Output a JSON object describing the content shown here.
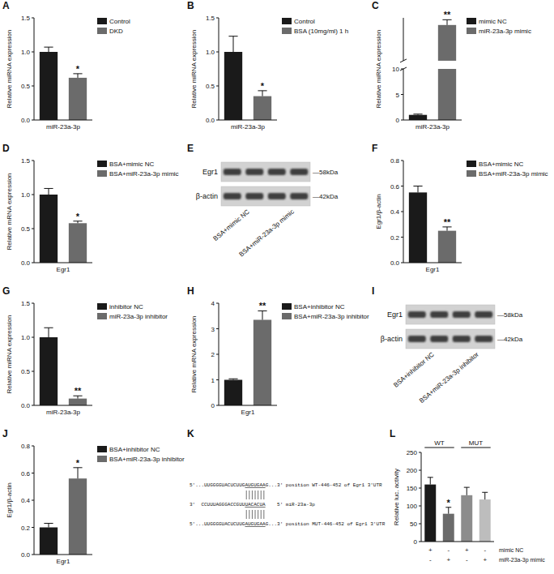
{
  "chart_data": [
    {
      "panel": "A",
      "type": "bar",
      "ylabel": "Relative miRNA expression",
      "categories": [
        "miR-23a-3p"
      ],
      "series": [
        {
          "name": "Control",
          "color": "#1a1a1a",
          "values": [
            1.0
          ],
          "errors": [
            0.07
          ]
        },
        {
          "name": "DKD",
          "color": "#6b6b6b",
          "values": [
            0.62
          ],
          "errors": [
            0.06
          ],
          "annotation": "*"
        }
      ],
      "ylim": [
        0,
        1.5
      ],
      "yticks": [
        {
          "value": 0,
          "label": "0.0"
        },
        {
          "value": 0.5,
          "label": "0.5"
        },
        {
          "value": 1,
          "label": "1.0"
        },
        {
          "value": 1.5,
          "label": "1.5"
        }
      ],
      "legend": "upper right"
    },
    {
      "panel": "B",
      "type": "bar",
      "ylabel": "Relative miRNA expression",
      "categories": [
        "miR-23a-3p"
      ],
      "series": [
        {
          "name": "Control",
          "color": "#1a1a1a",
          "values": [
            1.0
          ],
          "errors": [
            0.23
          ]
        },
        {
          "name": "BSA (10mg/ml) 1 h",
          "color": "#6b6b6b",
          "values": [
            0.35
          ],
          "errors": [
            0.08
          ],
          "annotation": "*"
        }
      ],
      "ylim": [
        0,
        1.5
      ],
      "yticks": [
        {
          "value": 0,
          "label": "0.0"
        },
        {
          "value": 0.5,
          "label": "0.5"
        },
        {
          "value": 1,
          "label": "1.0"
        },
        {
          "value": 1.5,
          "label": "1.5"
        }
      ],
      "legend": "upper right"
    },
    {
      "panel": "C",
      "type": "bar",
      "ylabel": "Relative miRNA expression",
      "categories": [
        "miR-23a-3p"
      ],
      "series": [
        {
          "name": "mimic NC",
          "color": "#1a1a1a",
          "values": [
            1.0
          ],
          "errors": [
            0.15
          ]
        },
        {
          "name": "miR-23a-3p mimic",
          "color": "#6b6b6b",
          "values": [
            850
          ],
          "errors": [
            110
          ],
          "annotation": "**"
        }
      ],
      "ylim": [
        0,
        1000
      ],
      "y_break": [
        10,
        100
      ],
      "yticks": [
        0,
        5,
        10
      ],
      "legend": "upper right"
    },
    {
      "panel": "D",
      "type": "bar",
      "ylabel": "Relative mRNA expression",
      "categories": [
        "Egr1"
      ],
      "series": [
        {
          "name": "BSA+mimic NC",
          "color": "#1a1a1a",
          "values": [
            1.0
          ],
          "errors": [
            0.09
          ]
        },
        {
          "name": "BSA+miR-23a-3p mimic",
          "color": "#6b6b6b",
          "values": [
            0.58
          ],
          "errors": [
            0.03
          ],
          "annotation": "*"
        }
      ],
      "ylim": [
        0,
        1.5
      ],
      "yticks": [
        {
          "value": 0,
          "label": "0.0"
        },
        {
          "value": 0.5,
          "label": "0.5"
        },
        {
          "value": 1,
          "label": "1.0"
        },
        {
          "value": 1.5,
          "label": "1.5"
        }
      ],
      "legend": "upper right"
    },
    {
      "panel": "F",
      "type": "bar",
      "ylabel": "Egr1/β-actin",
      "categories": [
        "Egr1"
      ],
      "series": [
        {
          "name": "BSA+mimic NC",
          "color": "#1a1a1a",
          "values": [
            0.55
          ],
          "errors": [
            0.05
          ]
        },
        {
          "name": "BSA+miR-23a-3p mimic",
          "color": "#6b6b6b",
          "values": [
            0.25
          ],
          "errors": [
            0.03
          ],
          "annotation": "**"
        }
      ],
      "ylim": [
        0,
        0.8
      ],
      "yticks": [
        {
          "value": 0,
          "label": "0.0"
        },
        {
          "value": 0.2,
          "label": "0.2"
        },
        {
          "value": 0.4,
          "label": "0.4"
        },
        {
          "value": 0.6,
          "label": "0.6"
        },
        {
          "value": 0.8,
          "label": "0.8"
        }
      ],
      "legend": "upper right"
    },
    {
      "panel": "G",
      "type": "bar",
      "ylabel": "Relative miRNA expression",
      "categories": [
        "miR-23a-3p"
      ],
      "series": [
        {
          "name": "inhibitor NC",
          "color": "#1a1a1a",
          "values": [
            1.0
          ],
          "errors": [
            0.14
          ]
        },
        {
          "name": "miR-23a-3p inhibitor",
          "color": "#6b6b6b",
          "values": [
            0.1
          ],
          "errors": [
            0.04
          ],
          "annotation": "**"
        }
      ],
      "ylim": [
        0,
        1.5
      ],
      "yticks": [
        {
          "value": 0,
          "label": "0.0"
        },
        {
          "value": 0.5,
          "label": "0.5"
        },
        {
          "value": 1,
          "label": "1.0"
        },
        {
          "value": 1.5,
          "label": "1.5"
        }
      ],
      "legend": "upper right"
    },
    {
      "panel": "H",
      "type": "bar",
      "ylabel": "Relative mRNA expression",
      "categories": [
        "Egr1"
      ],
      "series": [
        {
          "name": "BSA+inhibitor NC",
          "color": "#1a1a1a",
          "values": [
            1.0
          ],
          "errors": [
            0.04
          ]
        },
        {
          "name": "BSA+miR-23a-3p inhibitor",
          "color": "#6b6b6b",
          "values": [
            3.35
          ],
          "errors": [
            0.35
          ],
          "annotation": "**"
        }
      ],
      "ylim": [
        0,
        4
      ],
      "yticks": [
        0,
        1,
        2,
        3,
        4
      ],
      "legend": "upper right"
    },
    {
      "panel": "J",
      "type": "bar",
      "ylabel": "Egr1/β-actin",
      "categories": [
        "Egr1"
      ],
      "series": [
        {
          "name": "BSA+inhibitor NC",
          "color": "#1a1a1a",
          "values": [
            0.2
          ],
          "errors": [
            0.03
          ]
        },
        {
          "name": "BSA+miR-23a-3p inhibitor",
          "color": "#6b6b6b",
          "values": [
            0.56
          ],
          "errors": [
            0.08
          ],
          "annotation": "*"
        }
      ],
      "ylim": [
        0,
        0.8
      ],
      "yticks": [
        {
          "value": 0,
          "label": "0.0"
        },
        {
          "value": 0.2,
          "label": "0.2"
        },
        {
          "value": 0.4,
          "label": "0.4"
        },
        {
          "value": 0.6,
          "label": "0.6"
        },
        {
          "value": 0.8,
          "label": "0.8"
        }
      ],
      "legend": "upper right"
    },
    {
      "panel": "L",
      "type": "bar",
      "ylabel": "Relative luc. activity",
      "categories": [
        null,
        null,
        null,
        null
      ],
      "values": [
        160,
        78,
        130,
        118
      ],
      "errors": [
        20,
        18,
        22,
        20
      ],
      "colors": [
        "#1a1a1a",
        "#6b6b6b",
        "#8c8c8c",
        "#bdbdbd"
      ],
      "annotations": [
        null,
        "*",
        null,
        null
      ],
      "groups": [
        {
          "label": "WT",
          "from": 0,
          "to": 1
        },
        {
          "label": "MUT",
          "from": 2,
          "to": 3
        }
      ],
      "conditions": [
        {
          "label": "mimic NC",
          "values": [
            "+",
            "-",
            "+",
            "-"
          ]
        },
        {
          "label": "miR-23a-3p mimic",
          "values": [
            "-",
            "+",
            "-",
            "+"
          ]
        }
      ],
      "ylim": [
        0,
        250
      ],
      "yticks": [
        0,
        50,
        100,
        150,
        200,
        250
      ]
    }
  ],
  "blots": [
    {
      "panel": "E",
      "rows": [
        {
          "label": "Egr1",
          "size": "—58kDa"
        },
        {
          "label": "β-actin",
          "size": "—42kDa"
        }
      ],
      "lanes": [
        "BSA+mimic NC",
        "BSA+miR-23a-3p mimic"
      ]
    },
    {
      "panel": "I",
      "rows": [
        {
          "label": "Egr1",
          "size": "—58kDa"
        },
        {
          "label": "β-actin",
          "size": "—42kDa"
        }
      ],
      "lanes": [
        "BSA+inhibitor NC",
        "BSA+miR-23a-3p inhibitor"
      ]
    }
  ],
  "sequence": {
    "panel": "K",
    "lines": [
      {
        "prefix": "5'...UUGGGGUACUCUUG",
        "seed": "AUGUGAA",
        "suffix": "G...3' position WT-446-452 of Egr1 3'UTR"
      },
      {
        "prefix": "3'  CCUUUAGGGACCGUU",
        "seed": "UACACUA",
        "suffix": "    5' miR-23a-3p"
      },
      {
        "prefix": "5'...UUGGGGUACUCUUG",
        "seed": "AUGUGAA",
        "suffix": "G...3' position MUT-446-452 of Egr1 3'UTR"
      }
    ]
  }
}
